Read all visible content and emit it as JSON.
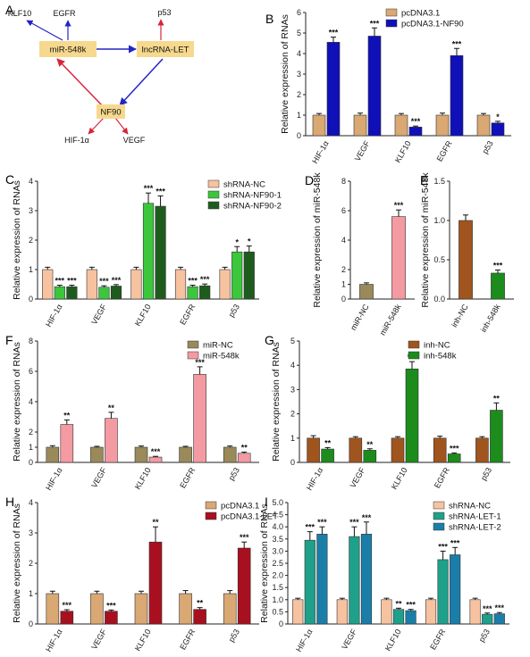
{
  "colors": {
    "blue": "#2424c8",
    "red": "#d8243c",
    "node_fill": "#f6d98e",
    "tan": "#d9a873",
    "navy": "#1010b8",
    "peach": "#f7c2a0",
    "lightgreen": "#3cc63c",
    "darkgreen": "#1e5c1e",
    "brown": "#a0551e",
    "green2": "#1c8c1c",
    "pink": "#f7a0a8",
    "olive": "#9a8a5a",
    "pink2": "#f49aa2",
    "darkred": "#a81020",
    "teal": "#1fa08a",
    "teal2": "#1a7ea8"
  },
  "diagram": {
    "label": "A",
    "nodes": [
      {
        "id": "mir",
        "text": "miR-548k"
      },
      {
        "id": "lnc",
        "text": "lncRNA-LET"
      },
      {
        "id": "nf90",
        "text": "NF90"
      }
    ],
    "targets": [
      "KLF10",
      "EGFR",
      "p53",
      "HIF-1α",
      "VEGF"
    ]
  },
  "chart_data": [
    {
      "panel": "B",
      "type": "bar",
      "ylabel": "Relative expression of RNAs",
      "categories": [
        "HIF-1α",
        "VEGF",
        "KLF10",
        "EGFR",
        "p53"
      ],
      "ylim": [
        0,
        6
      ],
      "yticks": [
        "0",
        "1",
        "2",
        "3",
        "4",
        "5",
        "6"
      ],
      "series": [
        {
          "name": "pcDNA3.1",
          "color": "#d9a873",
          "values": [
            1.0,
            1.0,
            1.0,
            1.0,
            1.0
          ],
          "errors": [
            0.08,
            0.1,
            0.08,
            0.1,
            0.08
          ]
        },
        {
          "name": "pcDNA3.1-NF90",
          "color": "#1010b8",
          "values": [
            4.55,
            4.85,
            0.42,
            3.9,
            0.62
          ],
          "errors": [
            0.25,
            0.4,
            0.05,
            0.35,
            0.08
          ]
        }
      ],
      "significance": [
        [
          "",
          "***"
        ],
        [
          "",
          "***"
        ],
        [
          "",
          "***"
        ],
        [
          "",
          "***"
        ],
        [
          "",
          "*"
        ]
      ],
      "legend_placement": "top-right"
    },
    {
      "panel": "C",
      "type": "bar",
      "ylabel": "Relative expression of RNAs",
      "categories": [
        "HIF-1α",
        "VEGF",
        "KLF10",
        "EGFR",
        "p53"
      ],
      "ylim": [
        0,
        4
      ],
      "yticks": [
        "0",
        "1",
        "2",
        "3",
        "4"
      ],
      "series": [
        {
          "name": "shRNA-NC",
          "color": "#f7c2a0",
          "values": [
            1.0,
            1.0,
            1.0,
            1.0,
            1.0
          ],
          "errors": [
            0.08,
            0.08,
            0.08,
            0.08,
            0.08
          ]
        },
        {
          "name": "shRNA-NF90-1",
          "color": "#3cc63c",
          "values": [
            0.42,
            0.4,
            3.25,
            0.42,
            1.6
          ],
          "errors": [
            0.05,
            0.05,
            0.35,
            0.05,
            0.18
          ]
        },
        {
          "name": "shRNA-NF90-2",
          "color": "#1e5c1e",
          "values": [
            0.42,
            0.44,
            3.15,
            0.45,
            1.6
          ],
          "errors": [
            0.05,
            0.05,
            0.35,
            0.06,
            0.2
          ]
        }
      ],
      "significance": [
        [
          "",
          "***",
          "***"
        ],
        [
          "",
          "***",
          "***"
        ],
        [
          "",
          "***",
          "***"
        ],
        [
          "",
          "***",
          "***"
        ],
        [
          "",
          "*",
          "*"
        ]
      ],
      "legend_placement": "top-right"
    },
    {
      "panel": "D",
      "type": "bar",
      "ylabel": "Relative expression of miR-548k",
      "categories": [
        "miR-NC",
        "miR-548k"
      ],
      "ylim": [
        0,
        8
      ],
      "yticks": [
        "0",
        "1",
        "2",
        "4",
        "6",
        "8"
      ],
      "values": [
        1.0,
        5.6
      ],
      "errors": [
        0.1,
        0.45
      ],
      "colors": [
        "#9a8a5a",
        "#f49aa2"
      ],
      "significance": [
        "",
        "***"
      ]
    },
    {
      "panel": "E",
      "type": "bar",
      "ylabel": "Relative expression of miR-548k",
      "categories": [
        "inh-NC",
        "inh-548k"
      ],
      "ylim": [
        0,
        1.5
      ],
      "yticks": [
        "0.0",
        "0.5",
        "1.0",
        "1.5"
      ],
      "values": [
        1.0,
        0.33
      ],
      "errors": [
        0.07,
        0.04
      ],
      "colors": [
        "#a0551e",
        "#1c8c1c"
      ],
      "significance": [
        "",
        "***"
      ]
    },
    {
      "panel": "F",
      "type": "bar",
      "ylabel": "Relative expression of RNAs",
      "categories": [
        "HIF-1α",
        "VEGF",
        "KLF10",
        "EGFR",
        "p53"
      ],
      "ylim": [
        0,
        8
      ],
      "yticks": [
        "0",
        "1",
        "2",
        "4",
        "6",
        "8"
      ],
      "series": [
        {
          "name": "miR-NC",
          "color": "#9a8a5a",
          "values": [
            1.0,
            1.0,
            1.0,
            1.0,
            1.0
          ],
          "errors": [
            0.1,
            0.06,
            0.08,
            0.06,
            0.08
          ]
        },
        {
          "name": "miR-548k",
          "color": "#f49aa2",
          "values": [
            2.5,
            2.9,
            0.35,
            5.8,
            0.6
          ],
          "errors": [
            0.3,
            0.4,
            0.05,
            0.5,
            0.08
          ]
        }
      ],
      "significance": [
        [
          "",
          "**"
        ],
        [
          "",
          "**"
        ],
        [
          "",
          "***"
        ],
        [
          "",
          "***"
        ],
        [
          "",
          "**"
        ]
      ],
      "legend_placement": "top-left"
    },
    {
      "panel": "G",
      "type": "bar",
      "ylabel": "Relative expression of RNAs",
      "categories": [
        "HIF-1α",
        "VEGF",
        "KLF10",
        "EGFR",
        "p53"
      ],
      "ylim": [
        0,
        5
      ],
      "yticks": [
        "0",
        "1",
        "2",
        "3",
        "4",
        "5"
      ],
      "series": [
        {
          "name": "inh-NC",
          "color": "#a0551e",
          "values": [
            1.0,
            1.0,
            1.0,
            1.0,
            1.0
          ],
          "errors": [
            0.1,
            0.06,
            0.06,
            0.08,
            0.06
          ]
        },
        {
          "name": "inh-548k",
          "color": "#1c8c1c",
          "values": [
            0.55,
            0.5,
            3.85,
            0.35,
            2.15
          ],
          "errors": [
            0.06,
            0.06,
            0.3,
            0.04,
            0.3
          ]
        }
      ],
      "significance": [
        [
          "",
          "**"
        ],
        [
          "",
          "**"
        ],
        [
          "",
          "***"
        ],
        [
          "",
          "***"
        ],
        [
          "",
          "**"
        ]
      ],
      "legend_placement": "top-left"
    },
    {
      "panel": "H",
      "type": "bar",
      "ylabel": "Relative expression of RNAs",
      "categories": [
        "HIF-1α",
        "VEGF",
        "KLF10",
        "EGFR",
        "p53"
      ],
      "ylim": [
        0,
        4
      ],
      "yticks": [
        "0",
        "1",
        "2",
        "3",
        "4"
      ],
      "series": [
        {
          "name": "pcDNA3.1",
          "color": "#d9a873",
          "values": [
            1.0,
            1.0,
            1.0,
            1.0,
            1.0
          ],
          "errors": [
            0.08,
            0.08,
            0.08,
            0.1,
            0.1
          ]
        },
        {
          "name": "pcDNA3.1-LET",
          "color": "#a81020",
          "values": [
            0.42,
            0.42,
            2.7,
            0.48,
            2.5
          ],
          "errors": [
            0.05,
            0.04,
            0.5,
            0.06,
            0.2
          ]
        }
      ],
      "significance": [
        [
          "",
          "***"
        ],
        [
          "",
          "***"
        ],
        [
          "",
          "**"
        ],
        [
          "",
          "**"
        ],
        [
          "",
          "***"
        ]
      ],
      "legend_placement": "top-right"
    },
    {
      "panel": "I",
      "type": "bar",
      "ylabel": "Relative expression of RNAs",
      "categories": [
        "HIF-1α",
        "VEGF",
        "KLF10",
        "EGFR",
        "p53"
      ],
      "ylim": [
        0,
        5
      ],
      "yticks": [
        "0",
        "0.5",
        "1.0",
        "1.5",
        "2.0",
        "2.5",
        "3.0",
        "3.5",
        "4.0",
        "4.5",
        "5.0"
      ],
      "ytick_values": [
        0,
        0.5,
        1,
        1.5,
        2,
        2.5,
        3,
        3.5,
        4,
        4.5,
        5
      ],
      "series": [
        {
          "name": "shRNA-NC",
          "color": "#f7c2a0",
          "values": [
            1.0,
            1.0,
            1.0,
            1.0,
            1.0
          ],
          "errors": [
            0.06,
            0.06,
            0.06,
            0.06,
            0.06
          ]
        },
        {
          "name": "shRNA-LET-1",
          "color": "#1fa08a",
          "values": [
            3.45,
            3.6,
            0.6,
            2.65,
            0.4
          ],
          "errors": [
            0.35,
            0.4,
            0.05,
            0.35,
            0.05
          ]
        },
        {
          "name": "shRNA-LET-2",
          "color": "#1a7ea8",
          "values": [
            3.7,
            3.7,
            0.55,
            2.85,
            0.42
          ],
          "errors": [
            0.3,
            0.5,
            0.05,
            0.3,
            0.05
          ]
        }
      ],
      "significance": [
        [
          "",
          "***",
          "***"
        ],
        [
          "",
          "***",
          "***"
        ],
        [
          "",
          "**",
          "***"
        ],
        [
          "",
          "***",
          "***"
        ],
        [
          "",
          "***",
          "***"
        ]
      ],
      "legend_placement": "top-right"
    }
  ]
}
